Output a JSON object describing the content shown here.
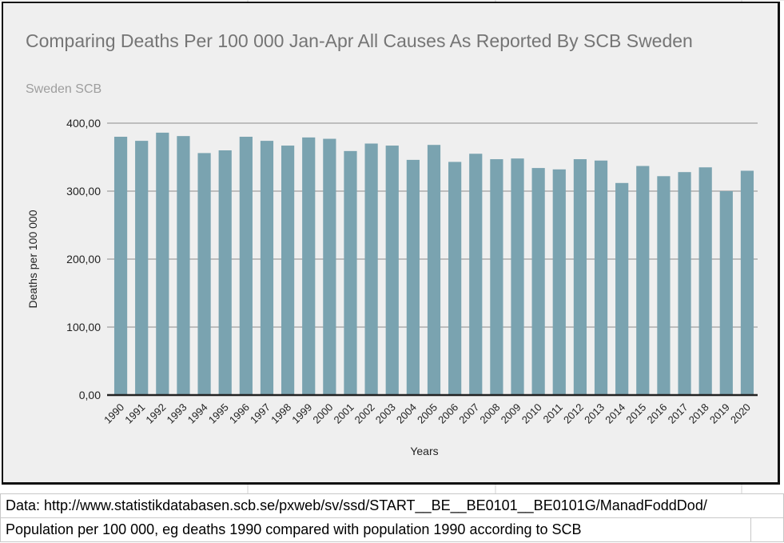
{
  "chart_data": {
    "type": "bar",
    "title": "Comparing Deaths Per 100 000 Jan-Apr All Causes As Reported By SCB Sweden",
    "subtitle": "Sweden SCB",
    "xlabel": "Years",
    "ylabel": "Deaths per 100 000",
    "ylim": [
      0,
      400
    ],
    "yticks": [
      "0,00",
      "100,00",
      "200,00",
      "300,00",
      "400,00"
    ],
    "ytick_values": [
      0,
      100,
      200,
      300,
      400
    ],
    "grid": true,
    "bar_color": "#7aa3b0",
    "categories": [
      "1990",
      "1991",
      "1992",
      "1993",
      "1994",
      "1995",
      "1996",
      "1997",
      "1998",
      "1999",
      "2000",
      "2001",
      "2002",
      "2003",
      "2004",
      "2005",
      "2006",
      "2007",
      "2008",
      "2009",
      "2010",
      "2011",
      "2012",
      "2013",
      "2014",
      "2015",
      "2016",
      "2017",
      "2018",
      "2019",
      "2020"
    ],
    "values": [
      380,
      374,
      386,
      381,
      356,
      360,
      380,
      374,
      367,
      379,
      377,
      359,
      370,
      367,
      346,
      368,
      343,
      355,
      347,
      348,
      334,
      332,
      347,
      345,
      312,
      337,
      322,
      328,
      335,
      300,
      330
    ]
  },
  "notes": {
    "source": "Data: http://www.statistikdatabasen.scb.se/pxweb/sv/ssd/START__BE__BE0101__BE0101G/ManadFoddDod/",
    "population": "Population per 100 000, eg deaths 1990 compared with population 1990 according to SCB"
  }
}
